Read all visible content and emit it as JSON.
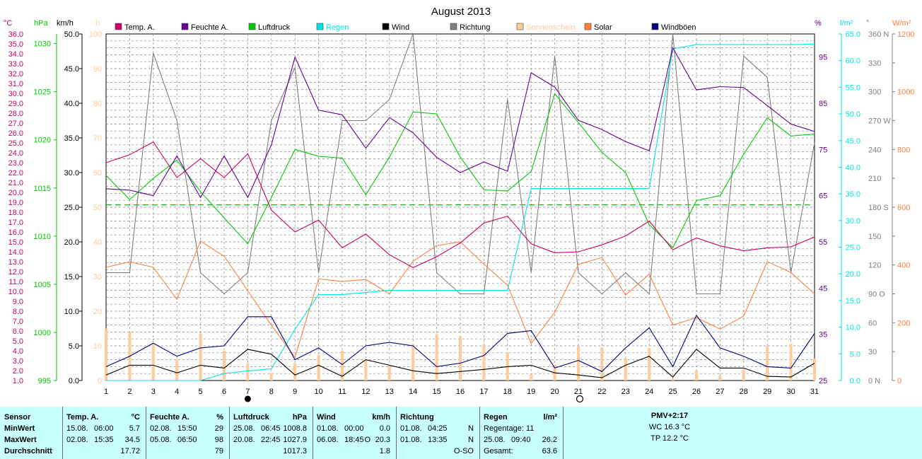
{
  "chart_data": {
    "type": "line",
    "title": "August 2013",
    "x": [
      1,
      2,
      3,
      4,
      5,
      6,
      7,
      8,
      9,
      10,
      11,
      12,
      13,
      14,
      15,
      16,
      17,
      18,
      19,
      20,
      21,
      22,
      23,
      24,
      25,
      26,
      27,
      28,
      29,
      30,
      31
    ],
    "axis_units": {
      "temp": "°C",
      "pressure": "hPa",
      "wind": "km/h",
      "sun": "h",
      "humidity": "%",
      "rain": "l/m²",
      "direction": "°",
      "solar": "W/m²"
    },
    "axes": {
      "temp": {
        "range": [
          1.0,
          36.0
        ],
        "ticks": [
          "1.0",
          "2.0",
          "3.0",
          "4.0",
          "5.0",
          "6.0",
          "7.0",
          "8.0",
          "9.0",
          "10.0",
          "11.0",
          "12.0",
          "13.0",
          "14.0",
          "15.0",
          "16.0",
          "17.0",
          "18.0",
          "19.0",
          "20.0",
          "21.0",
          "22.0",
          "23.0",
          "24.0",
          "25.0",
          "26.0",
          "27.0",
          "28.0",
          "29.0",
          "30.0",
          "31.0",
          "32.0",
          "33.0",
          "34.0",
          "35.0",
          "36.0"
        ]
      },
      "pressure": {
        "range": [
          995,
          1031
        ],
        "ticks": [
          "995",
          "1000",
          "1005",
          "1010",
          "1015",
          "1020",
          "1025",
          "1030"
        ]
      },
      "wind": {
        "range": [
          0,
          50
        ],
        "ticks": [
          "0.0",
          "5.0",
          "10.0",
          "15.0",
          "20.0",
          "25.0",
          "30.0",
          "35.0",
          "40.0",
          "45.0",
          "50.0"
        ]
      },
      "sun": {
        "range": [
          0,
          100
        ],
        "ticks": [
          "0",
          "10",
          "20",
          "30",
          "40",
          "50",
          "60",
          "70",
          "80",
          "90",
          "100"
        ]
      },
      "humidity": {
        "range": [
          25,
          100
        ],
        "ticks": [
          "25",
          "35",
          "45",
          "55",
          "65",
          "75",
          "85",
          "95"
        ]
      },
      "rain": {
        "range": [
          0,
          65
        ],
        "ticks": [
          "0.0",
          "5.0",
          "10.0",
          "15.0",
          "20.0",
          "25.0",
          "30.0",
          "35.0",
          "40.0",
          "45.0",
          "50.0",
          "55.0",
          "60.0",
          "65.0"
        ]
      },
      "direction": {
        "range": [
          0,
          360
        ],
        "ticks": [
          "0 N",
          "30",
          "60",
          "90 O",
          "120",
          "150",
          "180 S",
          "210",
          "240",
          "270 W",
          "300",
          "330",
          "360 N"
        ]
      },
      "solar": {
        "range": [
          0,
          1200
        ],
        "ticks": [
          "0",
          "200",
          "400",
          "600",
          "800",
          "1000",
          "1200"
        ]
      }
    },
    "ref_line": {
      "axis": "pressure",
      "value": 1013.25,
      "color": "#00cc00"
    },
    "markers": [
      {
        "x": 7,
        "symbol": "full-moon-dot",
        "label": "●"
      },
      {
        "x": 21,
        "symbol": "new-moon-ring",
        "label": "○"
      }
    ],
    "series": [
      {
        "name": "Temp. A.",
        "axis": "temp",
        "color": "#cc0066",
        "values": [
          23.0,
          23.8,
          25.1,
          21.5,
          23.4,
          21.5,
          23.9,
          18.2,
          16.0,
          17.2,
          14.4,
          15.8,
          13.7,
          12.4,
          13.5,
          14.9,
          16.9,
          17.6,
          14.8,
          13.9,
          14.0,
          14.7,
          15.6,
          17.1,
          14.2,
          15.4,
          14.6,
          14.1,
          14.4,
          14.5,
          15.5
        ]
      },
      {
        "name": "Feuchte A.",
        "axis": "humidity",
        "color": "#660099",
        "values": [
          66.5,
          66.2,
          65.0,
          73.6,
          64.6,
          73.6,
          64.6,
          76.0,
          95.0,
          83.5,
          82.5,
          75.3,
          81.9,
          78.6,
          73.3,
          70.0,
          72.3,
          70.3,
          91.6,
          88.5,
          81.3,
          79.3,
          76.7,
          74.7,
          97.0,
          87.9,
          88.6,
          88.4,
          84.5,
          80.5,
          78.9
        ]
      },
      {
        "name": "Luftdruck",
        "axis": "pressure",
        "color": "#00cc00",
        "values": [
          1016.3,
          1013.8,
          1016.0,
          1017.9,
          1014.6,
          1011.9,
          1009.2,
          1014.0,
          1019.0,
          1018.3,
          1018.1,
          1014.3,
          1018.2,
          1022.9,
          1022.7,
          1018.2,
          1014.8,
          1014.7,
          1016.7,
          1024.8,
          1021.8,
          1018.7,
          1016.6,
          1011.2,
          1008.8,
          1013.7,
          1014.2,
          1018.5,
          1022.3,
          1020.4,
          1020.6
        ]
      },
      {
        "name": "Regen",
        "axis": "rain",
        "color": "#00e6e6",
        "values": [
          0,
          0,
          0,
          0,
          0,
          1.3,
          1.8,
          2.2,
          9.6,
          16.1,
          16.1,
          16.5,
          16.9,
          16.9,
          16.9,
          16.9,
          16.9,
          16.9,
          36.0,
          36.0,
          36.0,
          36.0,
          36.0,
          36.0,
          62.2,
          63.0,
          63.0,
          63.0,
          63.0,
          63.0,
          63.1
        ]
      },
      {
        "name": "Wind",
        "axis": "wind",
        "color": "#000000",
        "values": [
          0.8,
          2.2,
          2.2,
          1.1,
          2.2,
          1.8,
          4.5,
          3.8,
          0.8,
          2.2,
          0.6,
          3.0,
          2.2,
          1.4,
          1.0,
          1.3,
          1.6,
          2.0,
          2.2,
          1.1,
          0.8,
          0.4,
          2.2,
          3.5,
          0.5,
          4.5,
          1.8,
          1.8,
          0.6,
          0.5,
          2.5
        ]
      },
      {
        "name": "Richtung",
        "axis": "direction",
        "color": "#808080",
        "values": [
          112,
          112,
          340,
          270,
          112,
          90,
          112,
          270,
          325,
          112,
          270,
          270,
          292,
          360,
          112,
          90,
          90,
          292,
          112,
          337,
          112,
          90,
          112,
          90,
          360,
          90,
          90,
          337,
          315,
          112,
          247
        ]
      },
      {
        "name": "Sonnenschein",
        "axis": "sun",
        "type": "bar",
        "color": "#ffcc99",
        "values": [
          15.0,
          14.0,
          10.7,
          6.0,
          13.6,
          8.6,
          5.0,
          2.2,
          5.0,
          7.4,
          8.6,
          5.8,
          4.4,
          10.4,
          13.4,
          12.6,
          10.4,
          8.2,
          1.8,
          4.6,
          10.0,
          9.6,
          6.4,
          9.4,
          0.4,
          2.8,
          1.4,
          3.2,
          10.0,
          10.6,
          6.4
        ]
      },
      {
        "name": "Solar",
        "axis": "solar",
        "color": "#ff8040",
        "values": [
          392,
          411,
          392,
          281,
          483,
          430,
          311,
          191,
          81,
          352,
          343,
          350,
          300,
          413,
          467,
          480,
          403,
          330,
          128,
          236,
          402,
          426,
          296,
          368,
          192,
          218,
          178,
          223,
          412,
          374,
          300
        ]
      },
      {
        "name": "Windböen",
        "axis": "wind",
        "color": "#000080",
        "values": [
          2.0,
          3.5,
          5.4,
          3.5,
          4.7,
          5.0,
          9.2,
          9.2,
          3.0,
          4.7,
          2.3,
          5.0,
          5.5,
          5.0,
          2.0,
          2.5,
          3.6,
          6.8,
          7.2,
          1.8,
          2.9,
          1.3,
          4.7,
          7.6,
          2.0,
          9.4,
          4.7,
          3.5,
          2.0,
          1.8,
          6.8
        ]
      }
    ],
    "legend": [
      "Temp. A.",
      "Feuchte A.",
      "Luftdruck",
      "Regen",
      "Wind",
      "Richtung",
      "Sonnenschein",
      "Solar",
      "Windböen"
    ],
    "legend_position": "top",
    "grid": true
  },
  "colors": {
    "panel_bg": "#c8ffff",
    "temp_axis": "#cc0066",
    "pressure_axis": "#00cc00",
    "wind_axis": "#000000",
    "sun_axis": "#ffcc99",
    "humidity_axis": "#660099",
    "rain_axis": "#00e6e6",
    "direction_axis": "#808080",
    "solar_axis": "#ff8040"
  },
  "stats": {
    "labels": {
      "sensor": "Sensor",
      "min": "MinWert",
      "max": "MaxWert",
      "avg": "Durchschnitt"
    },
    "temp": {
      "header": "Temp. A.",
      "unit": "°C",
      "min_date": "15.08.",
      "min_time": "06:00",
      "min_val": "5.7",
      "max_date": "02.08.",
      "max_time": "15:35",
      "max_val": "34.5",
      "avg_val": "17.72"
    },
    "hum": {
      "header": "Feuchte A.",
      "unit": "%",
      "min_date": "02.08.",
      "min_time": "15:50",
      "min_val": "29",
      "max_date": "05.08.",
      "max_time": "06:50",
      "max_val": "98",
      "avg_val": "79"
    },
    "press": {
      "header": "Luftdruck",
      "unit": "hPa",
      "min_date": "25.08.",
      "min_time": "06:45",
      "min_val": "1008.8",
      "max_date": "20.08.",
      "max_time": "22:45",
      "max_val": "1027.9",
      "avg_val": "1017.3"
    },
    "wind": {
      "header": "Wind",
      "unit": "km/h",
      "min_date": "01.08.",
      "min_time": "00:00",
      "min_val": "0.0",
      "max_date": "06.08.",
      "max_time": "18:45",
      "max_dir": "O",
      "max_val": "20.3",
      "avg_val": "1.8"
    },
    "dir": {
      "header": "Richtung",
      "min_date": "01.08.",
      "min_time": "04:25",
      "min_val": "N",
      "max_date": "01.08.",
      "max_time": "13:35",
      "max_val": "N",
      "avg_val": "O-SO"
    },
    "rain": {
      "header": "Regen",
      "unit": "l/m²",
      "days_label": "Regentage: 11",
      "max_date": "25.08.",
      "max_time": "09:40",
      "max_val": "26.2",
      "total_label": "Gesamt:",
      "total_val": "63.6"
    },
    "extra": {
      "pmv": "PMV+2:17",
      "wc": "WC 16.3 °C",
      "tp": "TP 12.2 °C"
    }
  }
}
